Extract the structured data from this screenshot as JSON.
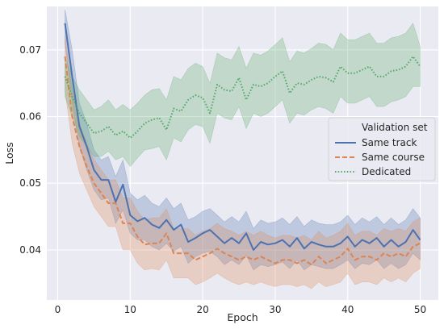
{
  "chart_data": {
    "type": "line",
    "title": "",
    "xlabel": "Epoch",
    "ylabel": "Loss",
    "xlim": [
      -1.5,
      52.5
    ],
    "ylim": [
      0.0325,
      0.0765
    ],
    "xticks": [
      0,
      10,
      20,
      30,
      40,
      50
    ],
    "yticks": [
      0.04,
      0.05,
      0.06,
      0.07
    ],
    "xtick_labels": [
      "0",
      "10",
      "20",
      "30",
      "40",
      "50"
    ],
    "ytick_labels": [
      "0.04",
      "0.05",
      "0.06",
      "0.07"
    ],
    "grid": true,
    "background": "#eaeaf2",
    "legend": {
      "title": "Validation set",
      "placement": "center-right"
    },
    "x": [
      1,
      2,
      3,
      4,
      5,
      6,
      7,
      8,
      9,
      10,
      11,
      12,
      13,
      14,
      15,
      16,
      17,
      18,
      19,
      20,
      21,
      22,
      23,
      24,
      25,
      26,
      27,
      28,
      29,
      30,
      31,
      32,
      33,
      34,
      35,
      36,
      37,
      38,
      39,
      40,
      41,
      42,
      43,
      44,
      45,
      46,
      47,
      48,
      49,
      50
    ],
    "series": [
      {
        "name": "Same track",
        "color": "#4c72b0",
        "dash": "solid",
        "values": [
          0.074,
          0.066,
          0.0585,
          0.0555,
          0.052,
          0.0505,
          0.0505,
          0.0472,
          0.0498,
          0.0452,
          0.0443,
          0.0448,
          0.0438,
          0.0433,
          0.0445,
          0.043,
          0.0438,
          0.0412,
          0.0418,
          0.0425,
          0.043,
          0.042,
          0.041,
          0.0418,
          0.041,
          0.0425,
          0.04,
          0.0412,
          0.0408,
          0.041,
          0.0415,
          0.0405,
          0.0418,
          0.0402,
          0.0412,
          0.0408,
          0.0405,
          0.0405,
          0.041,
          0.042,
          0.0405,
          0.0415,
          0.041,
          0.0418,
          0.0405,
          0.0415,
          0.0405,
          0.0412,
          0.043,
          0.0415
        ],
        "lower": [
          0.071,
          0.062,
          0.0555,
          0.052,
          0.049,
          0.0475,
          0.0478,
          0.044,
          0.046,
          0.0425,
          0.0415,
          0.0415,
          0.0405,
          0.04,
          0.041,
          0.0398,
          0.0405,
          0.038,
          0.039,
          0.0395,
          0.0398,
          0.039,
          0.0378,
          0.0385,
          0.0378,
          0.0392,
          0.037,
          0.0378,
          0.0375,
          0.0378,
          0.0382,
          0.0372,
          0.0385,
          0.037,
          0.0378,
          0.0375,
          0.0372,
          0.0372,
          0.0378,
          0.0385,
          0.0372,
          0.038,
          0.0378,
          0.0385,
          0.0372,
          0.038,
          0.0372,
          0.0378,
          0.0395,
          0.0385
        ],
        "upper": [
          0.076,
          0.07,
          0.062,
          0.059,
          0.055,
          0.0535,
          0.054,
          0.051,
          0.0535,
          0.0485,
          0.0475,
          0.0482,
          0.047,
          0.0465,
          0.0478,
          0.0462,
          0.047,
          0.0445,
          0.045,
          0.0458,
          0.0462,
          0.0452,
          0.0442,
          0.045,
          0.0442,
          0.0458,
          0.0432,
          0.0445,
          0.044,
          0.0442,
          0.0448,
          0.0438,
          0.045,
          0.0435,
          0.0445,
          0.044,
          0.0438,
          0.0438,
          0.0442,
          0.0452,
          0.0438,
          0.0448,
          0.0442,
          0.045,
          0.0438,
          0.0448,
          0.0438,
          0.0445,
          0.0462,
          0.0448
        ]
      },
      {
        "name": "Same course",
        "color": "#dd8452",
        "dash": "dashed",
        "values": [
          0.069,
          0.06,
          0.0555,
          0.0525,
          0.05,
          0.0485,
          0.047,
          0.047,
          0.044,
          0.044,
          0.042,
          0.0408,
          0.041,
          0.041,
          0.0425,
          0.0395,
          0.0395,
          0.0395,
          0.0385,
          0.039,
          0.0395,
          0.0402,
          0.0395,
          0.039,
          0.0385,
          0.039,
          0.0385,
          0.039,
          0.0385,
          0.038,
          0.0385,
          0.0385,
          0.038,
          0.0385,
          0.0378,
          0.039,
          0.038,
          0.0385,
          0.039,
          0.0402,
          0.0385,
          0.039,
          0.039,
          0.0385,
          0.0395,
          0.039,
          0.0395,
          0.039,
          0.0405,
          0.041
        ],
        "lower": [
          0.064,
          0.056,
          0.0515,
          0.049,
          0.0465,
          0.045,
          0.0435,
          0.0435,
          0.04,
          0.04,
          0.038,
          0.037,
          0.0372,
          0.037,
          0.0385,
          0.0358,
          0.0358,
          0.0358,
          0.0348,
          0.0352,
          0.0358,
          0.0365,
          0.0358,
          0.0352,
          0.0348,
          0.0352,
          0.0348,
          0.0352,
          0.0348,
          0.0345,
          0.0348,
          0.0348,
          0.0345,
          0.0348,
          0.0342,
          0.0352,
          0.0345,
          0.0348,
          0.0352,
          0.0365,
          0.0348,
          0.0352,
          0.0352,
          0.0348,
          0.0358,
          0.0352,
          0.0358,
          0.0352,
          0.0365,
          0.0372
        ],
        "upper": [
          0.072,
          0.064,
          0.059,
          0.056,
          0.0535,
          0.052,
          0.0505,
          0.0505,
          0.0478,
          0.0478,
          0.0458,
          0.0445,
          0.0448,
          0.0448,
          0.0462,
          0.0432,
          0.0432,
          0.0432,
          0.0422,
          0.0428,
          0.0432,
          0.044,
          0.0432,
          0.0428,
          0.0422,
          0.0428,
          0.0422,
          0.0428,
          0.0422,
          0.0418,
          0.0422,
          0.0422,
          0.0418,
          0.0422,
          0.0415,
          0.0428,
          0.0418,
          0.0422,
          0.0428,
          0.044,
          0.0422,
          0.0428,
          0.0428,
          0.0422,
          0.0432,
          0.0428,
          0.0432,
          0.0428,
          0.0442,
          0.0448
        ]
      },
      {
        "name": "Dedicated",
        "color": "#55a868",
        "dash": "dotted",
        "values": [
          0.066,
          0.063,
          0.0605,
          0.059,
          0.0575,
          0.0578,
          0.0585,
          0.0572,
          0.0578,
          0.0568,
          0.0578,
          0.059,
          0.0595,
          0.0598,
          0.058,
          0.0612,
          0.0608,
          0.0625,
          0.0632,
          0.0628,
          0.0605,
          0.0648,
          0.064,
          0.0638,
          0.0658,
          0.0625,
          0.0648,
          0.0645,
          0.065,
          0.066,
          0.0668,
          0.0635,
          0.065,
          0.0648,
          0.0655,
          0.066,
          0.0658,
          0.0652,
          0.0675,
          0.0665,
          0.0665,
          0.067,
          0.0675,
          0.066,
          0.066,
          0.0668,
          0.067,
          0.0675,
          0.069,
          0.0675
        ],
        "lower": [
          0.063,
          0.06,
          0.057,
          0.0555,
          0.054,
          0.054,
          0.0548,
          0.0535,
          0.054,
          0.0525,
          0.0538,
          0.055,
          0.0552,
          0.0555,
          0.0535,
          0.0568,
          0.0562,
          0.058,
          0.0588,
          0.0585,
          0.056,
          0.0605,
          0.0598,
          0.0595,
          0.0615,
          0.0582,
          0.0605,
          0.06,
          0.0605,
          0.0615,
          0.0625,
          0.059,
          0.0605,
          0.0602,
          0.061,
          0.0615,
          0.0612,
          0.0605,
          0.063,
          0.062,
          0.062,
          0.0625,
          0.063,
          0.0615,
          0.0615,
          0.0622,
          0.0625,
          0.063,
          0.0645,
          0.0645
        ],
        "upper": [
          0.069,
          0.066,
          0.064,
          0.0625,
          0.061,
          0.0615,
          0.0625,
          0.061,
          0.0618,
          0.061,
          0.062,
          0.0632,
          0.064,
          0.0642,
          0.0625,
          0.066,
          0.0655,
          0.0672,
          0.068,
          0.0675,
          0.065,
          0.0695,
          0.0688,
          0.0685,
          0.0705,
          0.0672,
          0.0695,
          0.0692,
          0.0698,
          0.0708,
          0.0718,
          0.0682,
          0.0698,
          0.0695,
          0.0702,
          0.071,
          0.0708,
          0.07,
          0.0725,
          0.0715,
          0.0715,
          0.072,
          0.0725,
          0.071,
          0.071,
          0.0718,
          0.072,
          0.0725,
          0.074,
          0.0705
        ]
      }
    ]
  }
}
